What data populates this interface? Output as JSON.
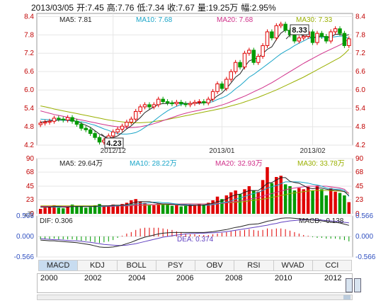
{
  "header": {
    "date": "2013/03/05",
    "open": "开:7.45",
    "high": "高:7.76",
    "low": "低:7.34",
    "close": "收:7.67",
    "volume": "量:19.25万",
    "change": "幅:2.95%"
  },
  "price_legend": {
    "ma5": "MA5: 7.81",
    "ma10": "MA10: 7.68",
    "ma20": "MA20: 7.68",
    "ma30": "MA30: 7.33"
  },
  "volume_legend": {
    "ma5": "MA5: 29.64万",
    "ma10": "MA10: 28.22万",
    "ma20": "MA20: 32.93万",
    "ma30": "MA30: 33.78万"
  },
  "macd_legend": {
    "dif": "DIF: 0.306",
    "dea": "DEA: 0.374",
    "macd": "MACD: -0.138"
  },
  "callouts": {
    "high": "8.33",
    "low": "4.23"
  },
  "tabs": [
    "MACD",
    "KDJ",
    "BOLL",
    "PSY",
    "OBV",
    "RSI",
    "WVAD",
    "CCI"
  ],
  "years": [
    "2000",
    "2002",
    "2004",
    "2006",
    "2008",
    "2010",
    "2012"
  ],
  "colors": {
    "up": "#e00000",
    "down": "#009a00",
    "ma5": "#222222",
    "ma10": "#1aa5c8",
    "ma20": "#d0308a",
    "ma30": "#9ab000",
    "dif": "#222222",
    "dea": "#6040c0"
  },
  "chart_data": [
    {
      "type": "candlestick",
      "x_labels": [
        "2012/12",
        "2013/01",
        "2013/02"
      ],
      "y_ticks": [
        4.2,
        4.8,
        5.4,
        6.0,
        6.6,
        7.2,
        7.8,
        8.4
      ],
      "ylim": [
        4.2,
        8.5
      ],
      "grid": true,
      "closes": [
        4.92,
        4.95,
        4.98,
        5.08,
        5.05,
        5.02,
        5.1,
        4.98,
        4.88,
        4.75,
        4.7,
        4.58,
        4.45,
        4.3,
        4.36,
        4.5,
        4.63,
        4.72,
        4.82,
        4.95,
        5.05,
        5.3,
        5.45,
        5.52,
        5.45,
        5.52,
        5.7,
        5.62,
        5.58,
        5.55,
        5.6,
        5.55,
        5.52,
        5.56,
        5.6,
        5.62,
        5.58,
        5.7,
        5.95,
        6.2,
        6.05,
        6.35,
        6.6,
        6.9,
        6.75,
        7.2,
        7.3,
        6.9,
        7.1,
        7.45,
        7.9,
        7.7,
        8.1,
        8.15,
        7.95,
        7.8,
        7.6,
        7.7,
        7.75,
        7.9,
        7.55,
        7.85,
        7.75,
        7.6,
        7.9,
        8.0,
        7.85,
        7.45,
        7.67
      ],
      "ma5": [
        4.95,
        4.97,
        4.99,
        5.0,
        5.02,
        5.04,
        5.03,
        5.01,
        4.98,
        4.91,
        4.85,
        4.78,
        4.67,
        4.56,
        4.48,
        4.45,
        4.45,
        4.5,
        4.61,
        4.73,
        4.83,
        4.97,
        5.1,
        5.26,
        5.36,
        5.45,
        5.53,
        5.56,
        5.56,
        5.58,
        5.59,
        5.58,
        5.56,
        5.56,
        5.57,
        5.57,
        5.58,
        5.61,
        5.69,
        5.81,
        5.9,
        6.05,
        6.23,
        6.42,
        6.53,
        6.76,
        6.95,
        7.01,
        7.05,
        7.19,
        7.33,
        7.41,
        7.65,
        7.86,
        7.96,
        7.94,
        7.92,
        7.84,
        7.76,
        7.75,
        7.7,
        7.75,
        7.76,
        7.73,
        7.73,
        7.82,
        7.82,
        7.77,
        7.81
      ],
      "ma10": [
        5.05,
        5.04,
        5.03,
        5.02,
        5.02,
        5.01,
        5.0,
        4.99,
        4.98,
        4.96,
        4.93,
        4.89,
        4.85,
        4.79,
        4.73,
        4.68,
        4.62,
        4.58,
        4.56,
        4.56,
        4.58,
        4.61,
        4.68,
        4.78,
        4.88,
        4.99,
        5.11,
        5.22,
        5.32,
        5.4,
        5.47,
        5.53,
        5.56,
        5.56,
        5.57,
        5.58,
        5.58,
        5.59,
        5.62,
        5.69,
        5.74,
        5.81,
        5.91,
        6.04,
        6.15,
        6.28,
        6.42,
        6.51,
        6.62,
        6.73,
        6.84,
        6.95,
        7.07,
        7.18,
        7.27,
        7.35,
        7.45,
        7.53,
        7.6,
        7.68,
        7.7,
        7.72,
        7.72,
        7.71,
        7.72,
        7.74,
        7.76,
        7.75,
        7.68
      ],
      "ma20": [
        5.32,
        5.28,
        5.24,
        5.2,
        5.17,
        5.14,
        5.11,
        5.08,
        5.05,
        5.02,
        4.99,
        4.96,
        4.93,
        4.9,
        4.87,
        4.84,
        4.82,
        4.8,
        4.78,
        4.77,
        4.77,
        4.78,
        4.8,
        4.83,
        4.86,
        4.9,
        4.95,
        5.0,
        5.05,
        5.1,
        5.15,
        5.2,
        5.24,
        5.28,
        5.31,
        5.34,
        5.37,
        5.4,
        5.43,
        5.47,
        5.51,
        5.56,
        5.62,
        5.68,
        5.74,
        5.8,
        5.87,
        5.94,
        6.01,
        6.08,
        6.16,
        6.24,
        6.33,
        6.42,
        6.51,
        6.6,
        6.69,
        6.78,
        6.87,
        6.95,
        7.03,
        7.11,
        7.19,
        7.26,
        7.33,
        7.4,
        7.47,
        7.55,
        7.68
      ],
      "ma30": [
        5.48,
        5.45,
        5.42,
        5.38,
        5.35,
        5.32,
        5.29,
        5.26,
        5.23,
        5.2,
        5.17,
        5.14,
        5.11,
        5.08,
        5.05,
        5.02,
        5.0,
        4.98,
        4.96,
        4.94,
        4.93,
        4.93,
        4.93,
        4.94,
        4.95,
        4.97,
        4.99,
        5.01,
        5.04,
        5.07,
        5.1,
        5.13,
        5.16,
        5.19,
        5.22,
        5.25,
        5.28,
        5.31,
        5.34,
        5.37,
        5.4,
        5.44,
        5.48,
        5.52,
        5.56,
        5.61,
        5.66,
        5.71,
        5.76,
        5.82,
        5.88,
        5.94,
        6.0,
        6.07,
        6.14,
        6.21,
        6.28,
        6.35,
        6.42,
        6.5,
        6.58,
        6.66,
        6.74,
        6.82,
        6.9,
        6.98,
        7.06,
        7.18,
        7.33
      ]
    },
    {
      "type": "bar",
      "y_ticks": [
        0,
        23,
        45,
        68,
        90
      ],
      "ylim": [
        0,
        90
      ],
      "unit": "x万",
      "values": [
        8,
        10,
        12,
        14,
        10,
        9,
        11,
        15,
        13,
        12,
        10,
        11,
        14,
        16,
        12,
        13,
        15,
        14,
        16,
        18,
        22,
        24,
        20,
        18,
        15,
        14,
        17,
        16,
        15,
        13,
        14,
        12,
        13,
        15,
        14,
        16,
        15,
        18,
        22,
        28,
        24,
        30,
        35,
        38,
        32,
        40,
        45,
        38,
        36,
        55,
        76,
        50,
        60,
        62,
        48,
        45,
        38,
        42,
        40,
        44,
        38,
        46,
        40,
        30,
        42,
        36,
        34,
        30,
        19
      ],
      "up": [
        true,
        true,
        true,
        true,
        false,
        false,
        true,
        false,
        false,
        false,
        false,
        false,
        false,
        false,
        true,
        true,
        true,
        true,
        true,
        true,
        true,
        true,
        true,
        true,
        false,
        true,
        true,
        false,
        false,
        false,
        true,
        false,
        false,
        true,
        true,
        true,
        false,
        true,
        true,
        true,
        false,
        true,
        true,
        true,
        false,
        true,
        true,
        false,
        true,
        true,
        true,
        false,
        true,
        true,
        false,
        false,
        false,
        true,
        true,
        true,
        false,
        true,
        false,
        false,
        true,
        true,
        false,
        false,
        true
      ],
      "ma5": [
        11,
        11,
        11,
        12,
        12,
        11,
        11,
        12,
        12,
        12,
        12,
        12,
        12,
        13,
        13,
        13,
        14,
        14,
        14,
        15,
        17,
        19,
        20,
        20,
        20,
        18,
        17,
        16,
        16,
        15,
        15,
        14,
        14,
        13,
        14,
        14,
        14,
        16,
        17,
        20,
        21,
        24,
        28,
        31,
        32,
        35,
        38,
        38,
        38,
        43,
        50,
        51,
        55,
        59,
        59,
        53,
        51,
        50,
        46,
        42,
        41,
        42,
        42,
        40,
        39,
        39,
        38,
        36,
        29.64
      ],
      "ma10": [
        11,
        11,
        11,
        11,
        11,
        11,
        11,
        12,
        12,
        12,
        12,
        12,
        12,
        12,
        12,
        13,
        13,
        13,
        14,
        14,
        15,
        16,
        17,
        17,
        18,
        19,
        19,
        18,
        18,
        17,
        16,
        15,
        15,
        15,
        14,
        14,
        14,
        14,
        15,
        16,
        18,
        19,
        21,
        24,
        26,
        28,
        31,
        33,
        35,
        38,
        42,
        44,
        46,
        49,
        52,
        52,
        52,
        52,
        51,
        50,
        48,
        47,
        45,
        42,
        41,
        40,
        40,
        38,
        28.22
      ],
      "ma20": [
        12,
        12,
        12,
        12,
        12,
        12,
        12,
        12,
        12,
        12,
        12,
        12,
        12,
        12,
        12,
        12,
        12,
        13,
        13,
        13,
        13,
        14,
        14,
        15,
        15,
        15,
        16,
        16,
        16,
        16,
        16,
        16,
        16,
        16,
        16,
        16,
        16,
        16,
        16,
        17,
        17,
        18,
        19,
        20,
        21,
        22,
        24,
        25,
        27,
        29,
        31,
        33,
        35,
        37,
        39,
        41,
        42,
        43,
        44,
        45,
        45,
        45,
        45,
        45,
        44,
        43,
        42,
        40,
        32.93
      ],
      "ma30": [
        13,
        13,
        13,
        13,
        13,
        13,
        13,
        13,
        13,
        13,
        13,
        13,
        13,
        13,
        13,
        13,
        13,
        13,
        13,
        13,
        14,
        14,
        14,
        14,
        14,
        15,
        15,
        15,
        15,
        15,
        15,
        16,
        16,
        16,
        16,
        16,
        16,
        16,
        17,
        17,
        17,
        18,
        18,
        19,
        19,
        20,
        21,
        22,
        23,
        24,
        25,
        27,
        28,
        30,
        31,
        33,
        34,
        35,
        36,
        37,
        38,
        38,
        38,
        38,
        38,
        37,
        37,
        36,
        33.78
      ]
    },
    {
      "type": "bar",
      "y_ticks": [
        -0.566,
        0.0,
        0.566
      ],
      "ylim": [
        -0.566,
        0.566
      ],
      "dif": [
        -0.1,
        -0.11,
        -0.12,
        -0.12,
        -0.13,
        -0.14,
        -0.15,
        -0.16,
        -0.17,
        -0.19,
        -0.21,
        -0.23,
        -0.26,
        -0.29,
        -0.3,
        -0.3,
        -0.29,
        -0.27,
        -0.24,
        -0.2,
        -0.16,
        -0.11,
        -0.06,
        -0.02,
        0.01,
        0.04,
        0.07,
        0.09,
        0.1,
        0.11,
        0.11,
        0.11,
        0.11,
        0.11,
        0.11,
        0.11,
        0.11,
        0.12,
        0.13,
        0.15,
        0.17,
        0.19,
        0.22,
        0.25,
        0.27,
        0.3,
        0.33,
        0.34,
        0.35,
        0.38,
        0.42,
        0.44,
        0.47,
        0.5,
        0.51,
        0.51,
        0.5,
        0.49,
        0.48,
        0.47,
        0.45,
        0.44,
        0.43,
        0.41,
        0.4,
        0.39,
        0.37,
        0.34,
        0.306
      ],
      "dea": [
        -0.06,
        -0.07,
        -0.08,
        -0.09,
        -0.09,
        -0.1,
        -0.11,
        -0.12,
        -0.12,
        -0.13,
        -0.15,
        -0.16,
        -0.18,
        -0.2,
        -0.22,
        -0.23,
        -0.24,
        -0.25,
        -0.25,
        -0.24,
        -0.22,
        -0.2,
        -0.17,
        -0.14,
        -0.11,
        -0.08,
        -0.05,
        -0.02,
        0.0,
        0.02,
        0.04,
        0.05,
        0.07,
        0.08,
        0.08,
        0.09,
        0.09,
        0.1,
        0.1,
        0.11,
        0.12,
        0.13,
        0.15,
        0.17,
        0.19,
        0.21,
        0.23,
        0.25,
        0.27,
        0.29,
        0.31,
        0.34,
        0.36,
        0.39,
        0.41,
        0.43,
        0.44,
        0.45,
        0.46,
        0.46,
        0.46,
        0.46,
        0.45,
        0.44,
        0.43,
        0.42,
        0.41,
        0.39,
        0.374
      ]
    }
  ]
}
